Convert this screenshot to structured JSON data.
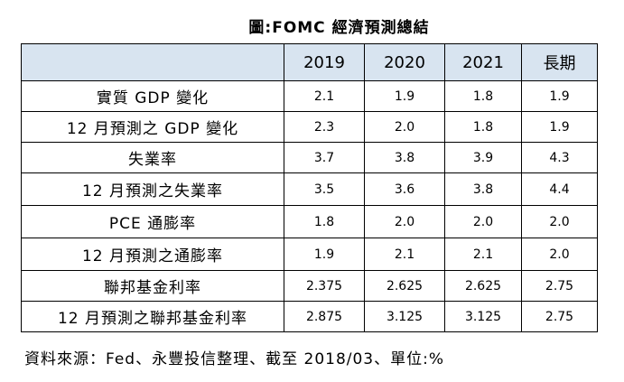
{
  "title": "圖:FOMC 經濟預測總結",
  "table": {
    "columns": [
      "",
      "2019",
      "2020",
      "2021",
      "長期"
    ],
    "rows": [
      {
        "label": "實質 GDP 變化",
        "values": [
          "2.1",
          "1.9",
          "1.8",
          "1.9"
        ]
      },
      {
        "label": "12 月預測之 GDP 變化",
        "values": [
          "2.3",
          "2.0",
          "1.8",
          "1.9"
        ]
      },
      {
        "label": "失業率",
        "values": [
          "3.7",
          "3.8",
          "3.9",
          "4.3"
        ]
      },
      {
        "label": "12 月預測之失業率",
        "values": [
          "3.5",
          "3.6",
          "3.8",
          "4.4"
        ]
      },
      {
        "label": "PCE 通膨率",
        "values": [
          "1.8",
          "2.0",
          "2.0",
          "2.0"
        ]
      },
      {
        "label": "12 月預測之通膨率",
        "values": [
          "1.9",
          "2.1",
          "2.1",
          "2.0"
        ]
      },
      {
        "label": "聯邦基金利率",
        "values": [
          "2.375",
          "2.625",
          "2.625",
          "2.75"
        ]
      },
      {
        "label": "12 月預測之聯邦基金利率",
        "values": [
          "2.875",
          "3.125",
          "3.125",
          "2.75"
        ]
      }
    ]
  },
  "source": "資料來源：Fed、永豐投信整理、截至 2018/03、單位:%"
}
